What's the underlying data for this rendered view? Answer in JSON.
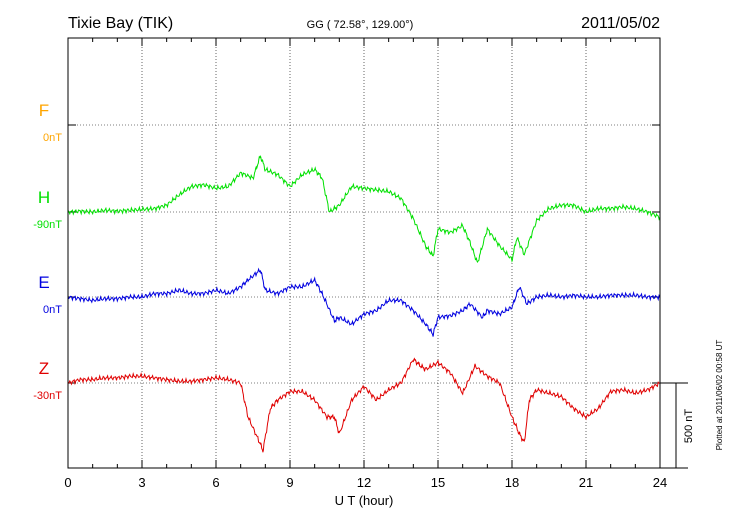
{
  "chart_data": {
    "type": "line",
    "title": "Tixie Bay (TIK)",
    "coords": "GG ( 72.58°, 129.00°)",
    "date": "2011/05/02",
    "xlabel": "U T (hour)",
    "xlim": [
      0,
      24
    ],
    "x_ticks": [
      0,
      3,
      6,
      9,
      12,
      15,
      18,
      21,
      24
    ],
    "x_tick_labels": [
      "0",
      "3",
      "6",
      "9",
      "12",
      "15",
      "18",
      "21",
      "24"
    ],
    "scale_bar_label": "500 nT",
    "scale_bar_nT": 500,
    "plotted_note": "Plotted at 2011/06/02 00:58 UT",
    "grid": true,
    "series": [
      {
        "name": "F",
        "baseline_label": "0nT",
        "color": "#ffa500",
        "x": [],
        "y": []
      },
      {
        "name": "H",
        "baseline_label": "-90nT",
        "color": "#00e000",
        "x": [
          0,
          0.5,
          1,
          1.5,
          2,
          2.5,
          3,
          3.5,
          4,
          4.5,
          5,
          5.5,
          6,
          6.5,
          7,
          7.5,
          7.8,
          8,
          8.5,
          9,
          9.5,
          10,
          10.3,
          10.6,
          11,
          11.5,
          12,
          12.5,
          13,
          13.5,
          14,
          14.5,
          14.8,
          15,
          15.5,
          16,
          16.3,
          16.6,
          17,
          17.5,
          18,
          18.2,
          18.5,
          19,
          19.5,
          20,
          20.5,
          21,
          21.5,
          22,
          22.5,
          23,
          23.5,
          24
        ],
        "y": [
          0,
          5,
          0,
          10,
          5,
          10,
          15,
          20,
          40,
          100,
          150,
          160,
          140,
          150,
          230,
          200,
          330,
          250,
          220,
          150,
          220,
          250,
          200,
          0,
          40,
          150,
          140,
          130,
          120,
          80,
          -40,
          -200,
          -260,
          -100,
          -120,
          -80,
          -180,
          -300,
          -100,
          -200,
          -280,
          -150,
          -250,
          -50,
          20,
          40,
          40,
          0,
          20,
          20,
          30,
          20,
          0,
          -30
        ]
      },
      {
        "name": "E",
        "baseline_label": "0nT",
        "color": "#0000e0",
        "x": [
          0,
          0.5,
          1,
          1.5,
          2,
          2.5,
          3,
          3.5,
          4,
          4.5,
          5,
          5.5,
          6,
          6.5,
          7,
          7.3,
          7.8,
          8,
          8.5,
          9,
          9.5,
          10,
          10.3,
          10.8,
          11,
          11.5,
          12,
          12.5,
          13,
          13.5,
          14,
          14.5,
          14.8,
          15,
          15.5,
          16,
          16.3,
          16.8,
          17,
          17.5,
          18,
          18.3,
          18.6,
          19,
          19.5,
          20,
          20.5,
          21,
          21.5,
          22,
          22.5,
          23,
          23.5,
          24
        ],
        "y": [
          0,
          -10,
          -20,
          -10,
          -10,
          0,
          0,
          20,
          20,
          40,
          20,
          20,
          40,
          20,
          60,
          100,
          160,
          40,
          20,
          60,
          60,
          100,
          20,
          -140,
          -120,
          -160,
          -100,
          -80,
          -20,
          -20,
          -80,
          -160,
          -220,
          -120,
          -110,
          -80,
          -40,
          -120,
          -80,
          -100,
          -60,
          60,
          -40,
          0,
          10,
          0,
          10,
          0,
          0,
          10,
          10,
          10,
          0,
          0
        ]
      },
      {
        "name": "Z",
        "baseline_label": "-30nT",
        "color": "#e00000",
        "x": [
          0,
          0.5,
          1,
          1.5,
          2,
          2.5,
          3,
          3.5,
          4,
          4.5,
          5,
          5.5,
          6,
          6.5,
          7,
          7.3,
          7.8,
          7.9,
          8.2,
          8.5,
          9,
          9.5,
          10,
          10.5,
          10.8,
          11,
          11.5,
          12,
          12.5,
          13,
          13.5,
          14,
          14.3,
          14.5,
          15,
          15.5,
          16,
          16.5,
          17,
          17.5,
          18,
          18.3,
          18.5,
          18.7,
          19,
          19.5,
          20,
          20.5,
          21,
          21.5,
          22,
          22.5,
          23,
          23.5,
          24
        ],
        "y": [
          0,
          20,
          20,
          30,
          30,
          40,
          40,
          30,
          20,
          10,
          10,
          20,
          30,
          20,
          0,
          -200,
          -360,
          -400,
          -150,
          -100,
          -50,
          -50,
          -100,
          -200,
          -200,
          -300,
          -100,
          -20,
          -100,
          -40,
          0,
          140,
          100,
          80,
          120,
          60,
          -60,
          100,
          40,
          0,
          -200,
          -300,
          -350,
          -100,
          -40,
          -60,
          -80,
          -150,
          -200,
          -150,
          -50,
          -40,
          -60,
          -40,
          0
        ]
      }
    ]
  }
}
